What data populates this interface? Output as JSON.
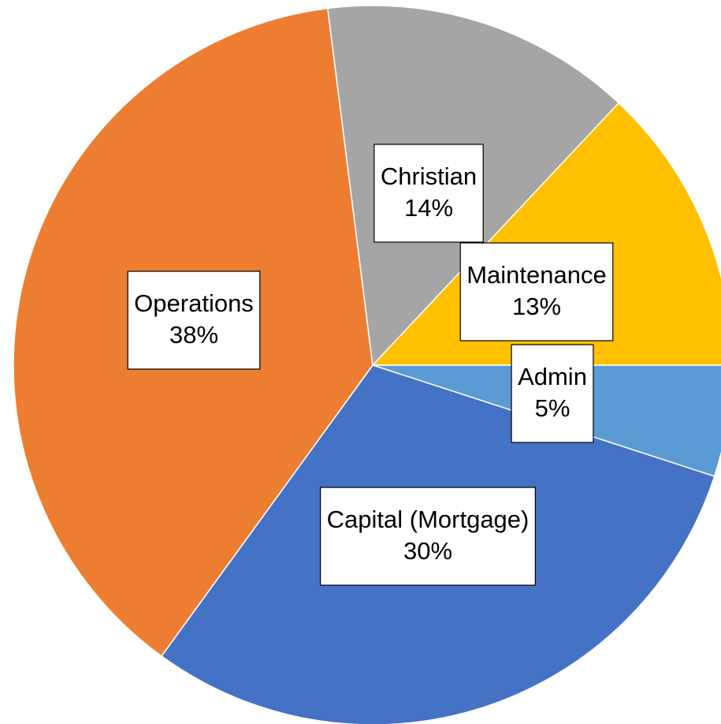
{
  "chart_data": {
    "type": "pie",
    "categories": [
      "Admin",
      "Capital (Mortgage)",
      "Operations",
      "Christian",
      "Maintenance"
    ],
    "values": [
      5,
      30,
      38,
      14,
      13
    ],
    "value_labels": [
      "5%",
      "30%",
      "38%",
      "14%",
      "13%"
    ],
    "colors": [
      "#5b9bd5",
      "#4472c4",
      "#ed7d31",
      "#a5a5a5",
      "#ffc000"
    ]
  }
}
